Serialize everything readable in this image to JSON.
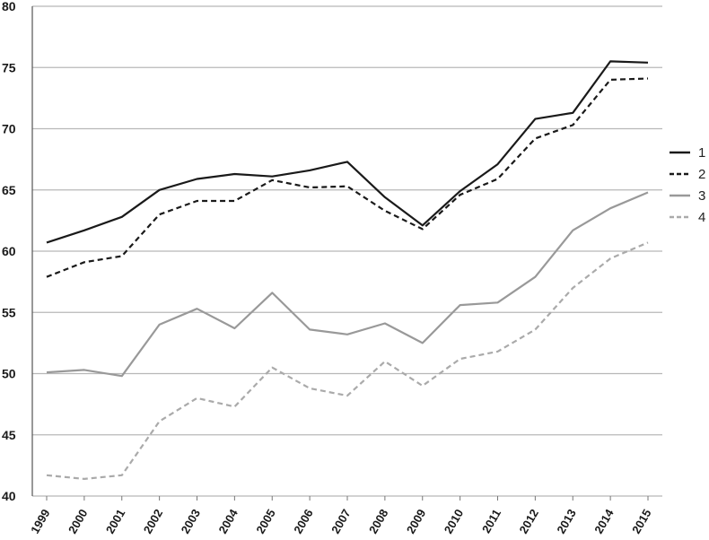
{
  "chart_data": {
    "type": "line",
    "title": "",
    "xlabel": "",
    "ylabel": "",
    "ylim": [
      40,
      80
    ],
    "yticks": [
      40,
      45,
      50,
      55,
      60,
      65,
      70,
      75,
      80
    ],
    "grid": "horizontal",
    "legend_position": "right",
    "categories": [
      "1999",
      "2000",
      "2001",
      "2002",
      "2003",
      "2004",
      "2005",
      "2006",
      "2007",
      "2008",
      "2009",
      "2010",
      "2011",
      "2012",
      "2013",
      "2014",
      "2015"
    ],
    "series": [
      {
        "name": "1",
        "color": "#1a1a1a",
        "dash": "solid",
        "values": [
          60.7,
          61.7,
          62.8,
          65.0,
          65.9,
          66.3,
          66.1,
          66.6,
          67.3,
          64.4,
          62.1,
          64.9,
          67.1,
          70.8,
          71.3,
          75.5,
          75.4
        ]
      },
      {
        "name": "2",
        "color": "#1a1a1a",
        "dash": "dashed",
        "values": [
          57.9,
          59.1,
          59.6,
          63.0,
          64.1,
          64.1,
          65.8,
          65.2,
          65.3,
          63.3,
          61.8,
          64.6,
          65.9,
          69.2,
          70.3,
          74.0,
          74.1
        ]
      },
      {
        "name": "3",
        "color": "#999999",
        "dash": "solid",
        "values": [
          50.1,
          50.3,
          49.8,
          54.0,
          55.3,
          53.7,
          56.6,
          53.6,
          53.2,
          54.1,
          52.5,
          55.6,
          55.8,
          57.9,
          61.7,
          63.5,
          64.8
        ]
      },
      {
        "name": "4",
        "color": "#aaaaaa",
        "dash": "dashed",
        "values": [
          41.7,
          41.4,
          41.7,
          46.1,
          48.0,
          47.3,
          50.5,
          48.8,
          48.2,
          51.0,
          49.0,
          51.2,
          51.8,
          53.6,
          57.0,
          59.4,
          60.7
        ]
      }
    ]
  }
}
